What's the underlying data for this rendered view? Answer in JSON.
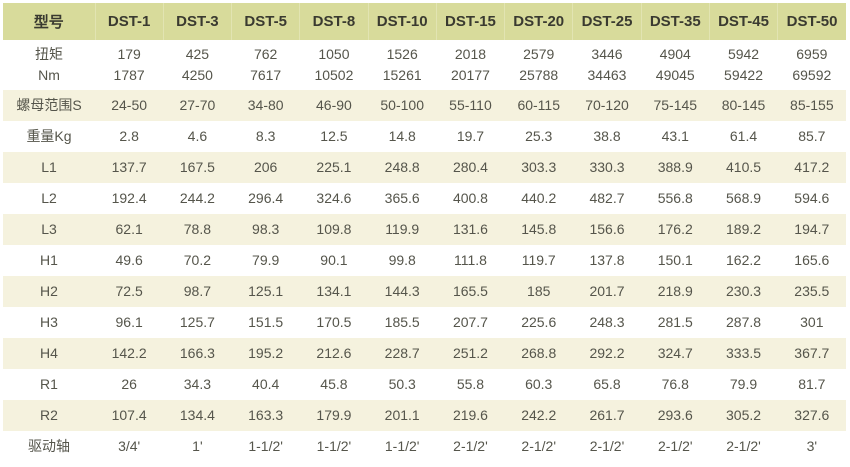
{
  "chart_data": {
    "type": "table",
    "columns": [
      "型号",
      "DST-1",
      "DST-3",
      "DST-5",
      "DST-8",
      "DST-10",
      "DST-15",
      "DST-20",
      "DST-25",
      "DST-35",
      "DST-45",
      "DST-50"
    ],
    "rows": [
      {
        "label": "扭矩\nNm",
        "values": [
          "179\n1787",
          "425\n4250",
          "762\n7617",
          "1050\n10502",
          "1526\n15261",
          "2018\n20177",
          "2579\n25788",
          "3446\n34463",
          "4904\n49045",
          "5942\n59422",
          "6959\n69592"
        ]
      },
      {
        "label": "螺母范围S",
        "values": [
          "24-50",
          "27-70",
          "34-80",
          "46-90",
          "50-100",
          "55-110",
          "60-115",
          "70-120",
          "75-145",
          "80-145",
          "85-155"
        ]
      },
      {
        "label": "重量Kg",
        "values": [
          "2.8",
          "4.6",
          "8.3",
          "12.5",
          "14.8",
          "19.7",
          "25.3",
          "38.8",
          "43.1",
          "61.4",
          "85.7"
        ]
      },
      {
        "label": "L1",
        "values": [
          "137.7",
          "167.5",
          "206",
          "225.1",
          "248.8",
          "280.4",
          "303.3",
          "330.3",
          "388.9",
          "410.5",
          "417.2"
        ]
      },
      {
        "label": "L2",
        "values": [
          "192.4",
          "244.2",
          "296.4",
          "324.6",
          "365.6",
          "400.8",
          "440.2",
          "482.7",
          "556.8",
          "568.9",
          "594.6"
        ]
      },
      {
        "label": "L3",
        "values": [
          "62.1",
          "78.8",
          "98.3",
          "109.8",
          "119.9",
          "131.6",
          "145.8",
          "156.6",
          "176.2",
          "189.2",
          "194.7"
        ]
      },
      {
        "label": "H1",
        "values": [
          "49.6",
          "70.2",
          "79.9",
          "90.1",
          "99.8",
          "111.8",
          "119.7",
          "137.8",
          "150.1",
          "162.2",
          "165.6"
        ]
      },
      {
        "label": "H2",
        "values": [
          "72.5",
          "98.7",
          "125.1",
          "134.1",
          "144.3",
          "165.5",
          "185",
          "201.7",
          "218.9",
          "230.3",
          "235.5"
        ]
      },
      {
        "label": "H3",
        "values": [
          "96.1",
          "125.7",
          "151.5",
          "170.5",
          "185.5",
          "207.7",
          "225.6",
          "248.3",
          "281.5",
          "287.8",
          "301"
        ]
      },
      {
        "label": "H4",
        "values": [
          "142.2",
          "166.3",
          "195.2",
          "212.6",
          "228.7",
          "251.2",
          "268.8",
          "292.2",
          "324.7",
          "333.5",
          "367.7"
        ]
      },
      {
        "label": "R1",
        "values": [
          "26",
          "34.3",
          "40.4",
          "45.8",
          "50.3",
          "55.8",
          "60.3",
          "65.8",
          "76.8",
          "79.9",
          "81.7"
        ]
      },
      {
        "label": "R2",
        "values": [
          "107.4",
          "134.4",
          "163.3",
          "179.9",
          "201.1",
          "219.6",
          "242.2",
          "261.7",
          "293.6",
          "305.2",
          "327.6"
        ]
      },
      {
        "label": "驱动轴",
        "values": [
          "3/4'",
          "1'",
          "1-1/2'",
          "1-1/2'",
          "1-1/2'",
          "2-1/2'",
          "2-1/2'",
          "2-1/2'",
          "2-1/2'",
          "2-1/2'",
          "3'"
        ]
      }
    ],
    "layout": {
      "legend": "none",
      "grid": "zebra-stripes",
      "header_position": "top"
    },
    "colors": {
      "header_bg": "#d8db9b",
      "header_text": "#3a3a30",
      "stripe_bg": "#f5f2de",
      "row_bg": "#ffffff",
      "text": "#55554b"
    }
  }
}
